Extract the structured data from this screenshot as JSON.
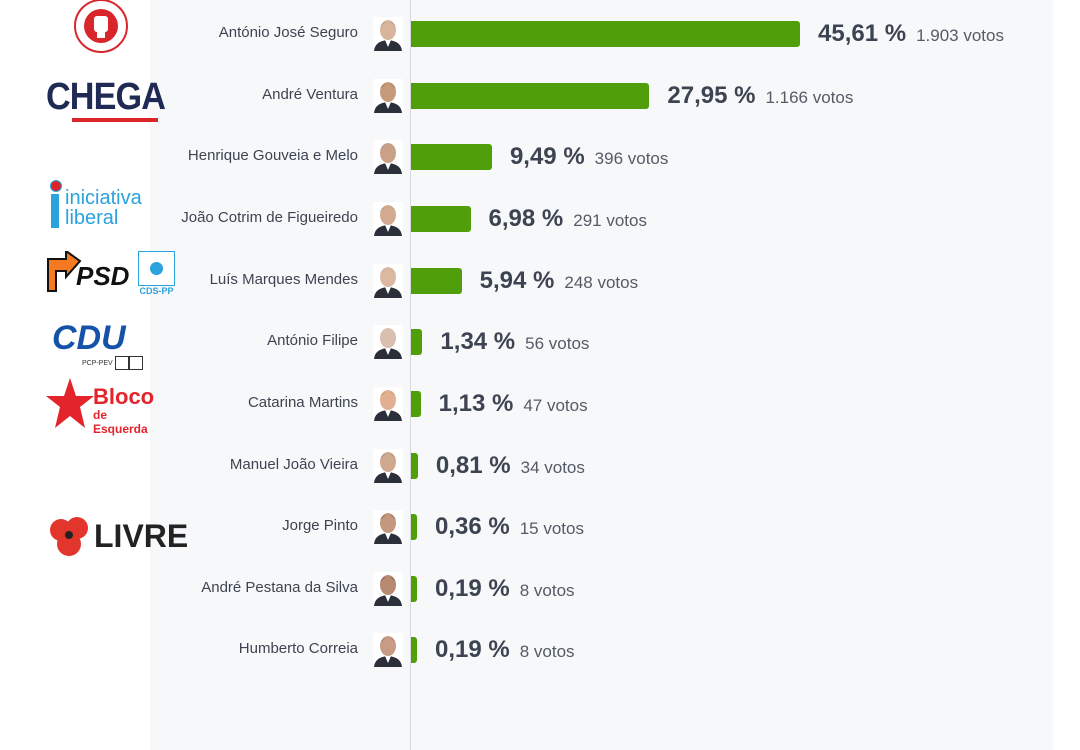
{
  "chart_data": {
    "type": "bar",
    "orientation": "horizontal",
    "title": "",
    "xlabel": "",
    "ylabel": "",
    "xlim": [
      0,
      45.61
    ],
    "categories": [
      "António José Seguro",
      "André Ventura",
      "Henrique Gouveia e Melo",
      "João Cotrim de Figueiredo",
      "Luís Marques Mendes",
      "António Filipe",
      "Catarina Martins",
      "Manuel João Vieira",
      "Jorge Pinto",
      "André Pestana da Silva",
      "Humberto Correia"
    ],
    "values": [
      45.61,
      27.95,
      9.49,
      6.98,
      5.94,
      1.34,
      1.13,
      0.81,
      0.36,
      0.19,
      0.19
    ],
    "value_labels": [
      "45,61 %",
      "27,95 %",
      "9,49 %",
      "6,98 %",
      "5,94 %",
      "1,34 %",
      "1,13 %",
      "0,81 %",
      "0,36 %",
      "0,19 %",
      "0,19 %"
    ],
    "votes": [
      "1.903 votos",
      "1.166 votos",
      "396 votos",
      "291 votos",
      "248 votos",
      "56 votos",
      "47 votos",
      "34 votos",
      "15 votos",
      "8 votos",
      "8 votos"
    ],
    "bar_color": "#4f9e0a"
  },
  "logos": {
    "ps": "PARTIDO SOCIALISTA",
    "chega": "CHEGA",
    "il_1": "iniciativa",
    "il_2": "liberal",
    "psd": "PSD",
    "cds": "CDS-PP",
    "cdu": "CDU",
    "cdu_sub": "PCP-PEV",
    "bloco_1": "Bloco",
    "bloco_2": "de Esquerda",
    "livre": "LIVRE"
  }
}
